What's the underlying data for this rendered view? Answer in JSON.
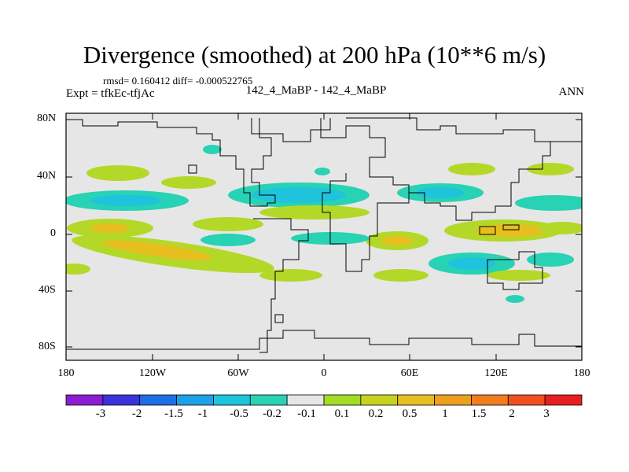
{
  "title": "Divergence (smoothed) at 200 hPa (10**6 m/s)",
  "stats_line": "rmsd= 0.160412 diff= -0.000522765",
  "experiment": "Expt = tfkEc-tfjAc",
  "cases": "142_4_MaBP - 142_4_MaBP",
  "season": "ANN",
  "map": {
    "background_color": "#e6e6e6",
    "lat_labels": [
      "80N",
      "40N",
      "0",
      "40S",
      "80S"
    ],
    "lon_labels": [
      "180",
      "120W",
      "60W",
      "0",
      "60E",
      "120E",
      "180"
    ]
  },
  "colorbar": {
    "colors": [
      "#8c1ed2",
      "#3c32dc",
      "#1e6ee6",
      "#1ea0e6",
      "#1ec3dc",
      "#28d2b4",
      "#e6e6e6",
      "#a0dc28",
      "#c8d21e",
      "#e6be1e",
      "#eba01e",
      "#f07d1e",
      "#f0501e",
      "#e61e1e"
    ],
    "labels": [
      "-3",
      "-2",
      "-1.5",
      "-1",
      "-0.5",
      "-0.2",
      "-0.1",
      "0.1",
      "0.2",
      "0.5",
      "1",
      "1.5",
      "2",
      "3"
    ]
  }
}
